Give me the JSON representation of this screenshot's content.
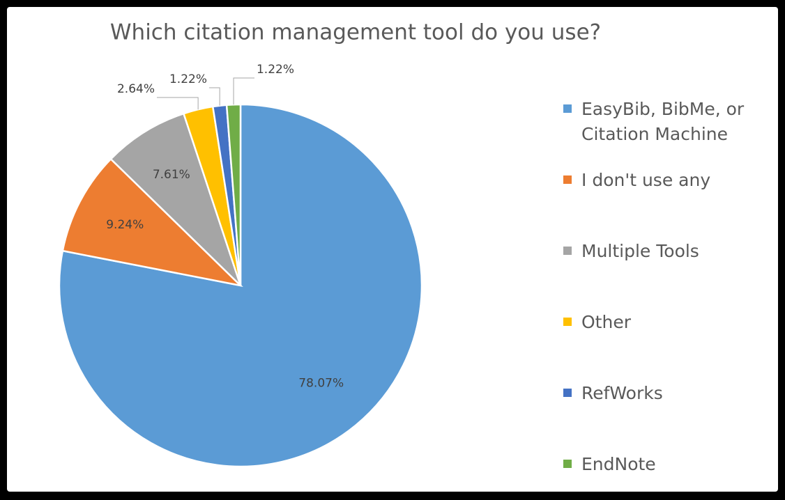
{
  "chart_data": {
    "type": "pie",
    "title": "Which citation management tool do you use?",
    "categories": [
      "EasyBib, BibMe, or Citation Machine",
      "I don't use any",
      "Multiple Tools",
      "Other",
      "RefWorks",
      "EndNote"
    ],
    "values": [
      78.07,
      9.24,
      7.61,
      2.64,
      1.22,
      1.22
    ],
    "value_labels": [
      "78.07%",
      "9.24%",
      "7.61%",
      "2.64%",
      "1.22%",
      "1.22%"
    ],
    "colors": [
      "#5b9bd5",
      "#ed7d31",
      "#a5a5a5",
      "#ffc000",
      "#4472c4",
      "#70ad47"
    ],
    "legend": "right"
  }
}
